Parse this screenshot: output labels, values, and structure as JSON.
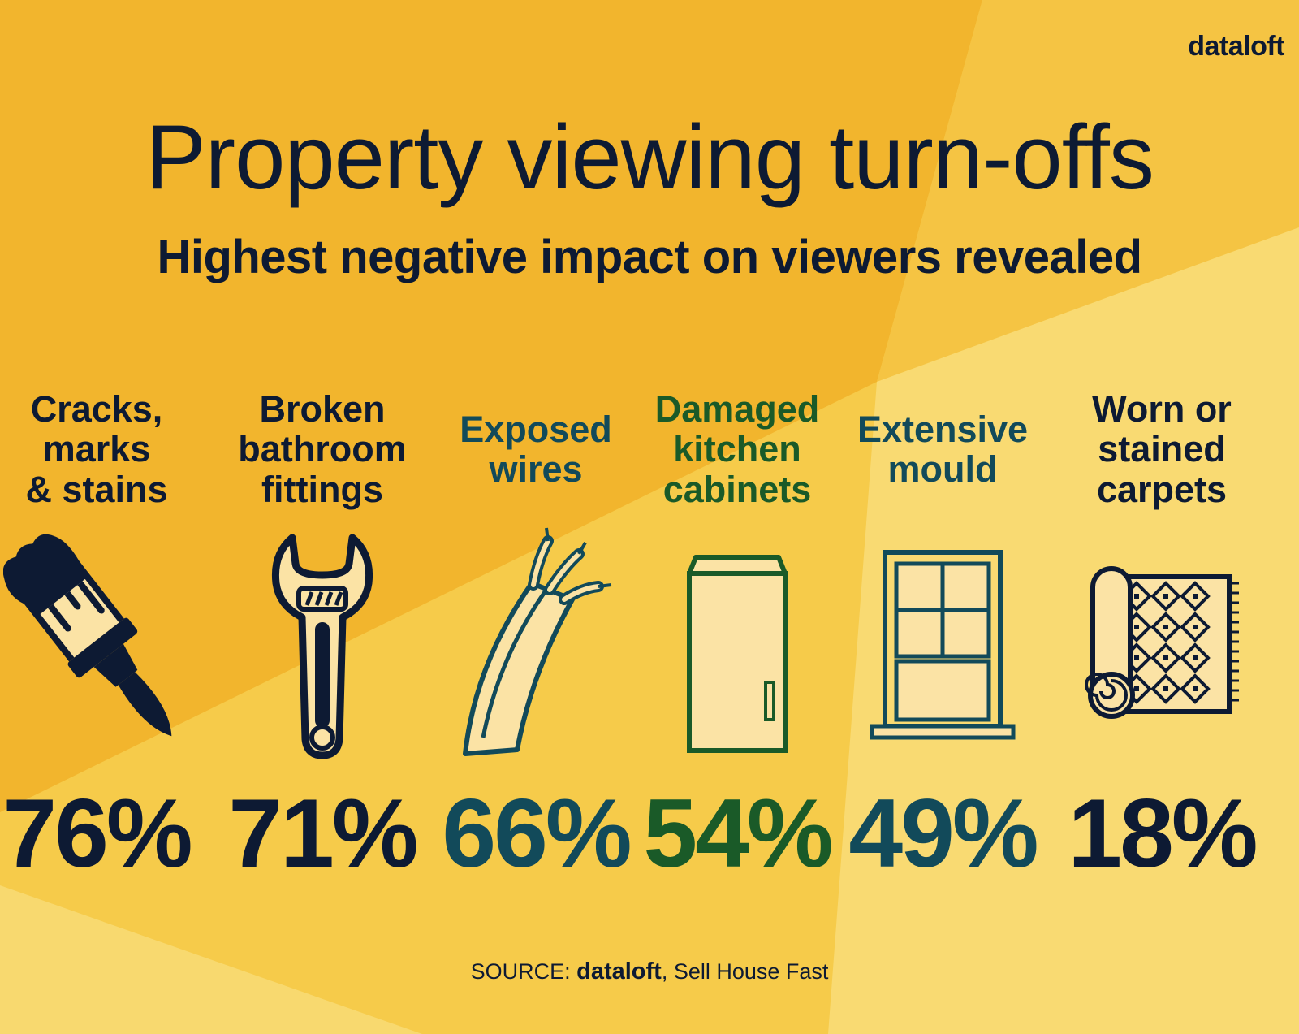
{
  "brand": "dataloft",
  "title": "Property viewing turn-offs",
  "subtitle": "Highest negative impact on viewers revealed",
  "colors": {
    "navy": "#0d1a33",
    "teal": "#124a5a",
    "green": "#1a5a28",
    "cream": "#fbe3a5",
    "bg_dark": "#f2b52d",
    "bg_mid": "#f6cb4a",
    "bg_light": "#f9da72"
  },
  "items": [
    {
      "label_lines": [
        "Cracks,",
        "marks",
        "& stains"
      ],
      "value": "76%",
      "icon": "paintbrush-icon",
      "color": "#0d1a33"
    },
    {
      "label_lines": [
        "Broken",
        "bathroom",
        "fittings"
      ],
      "value": "71%",
      "icon": "wrench-icon",
      "color": "#0d1a33"
    },
    {
      "label_lines": [
        "Exposed",
        "wires"
      ],
      "value": "66%",
      "icon": "wires-icon",
      "color": "#124a5a"
    },
    {
      "label_lines": [
        "Damaged",
        "kitchen",
        "cabinets"
      ],
      "value": "54%",
      "icon": "cabinet-icon",
      "color": "#1a5a28"
    },
    {
      "label_lines": [
        "Extensive",
        "mould"
      ],
      "value": "49%",
      "icon": "window-icon",
      "color": "#124a5a"
    },
    {
      "label_lines": [
        "Worn or",
        "stained",
        "carpets"
      ],
      "value": "18%",
      "icon": "rug-icon",
      "color": "#0d1a33"
    }
  ],
  "source": {
    "prefix": "SOURCE:",
    "brand": "dataloft",
    "suffix": ", Sell House Fast"
  }
}
